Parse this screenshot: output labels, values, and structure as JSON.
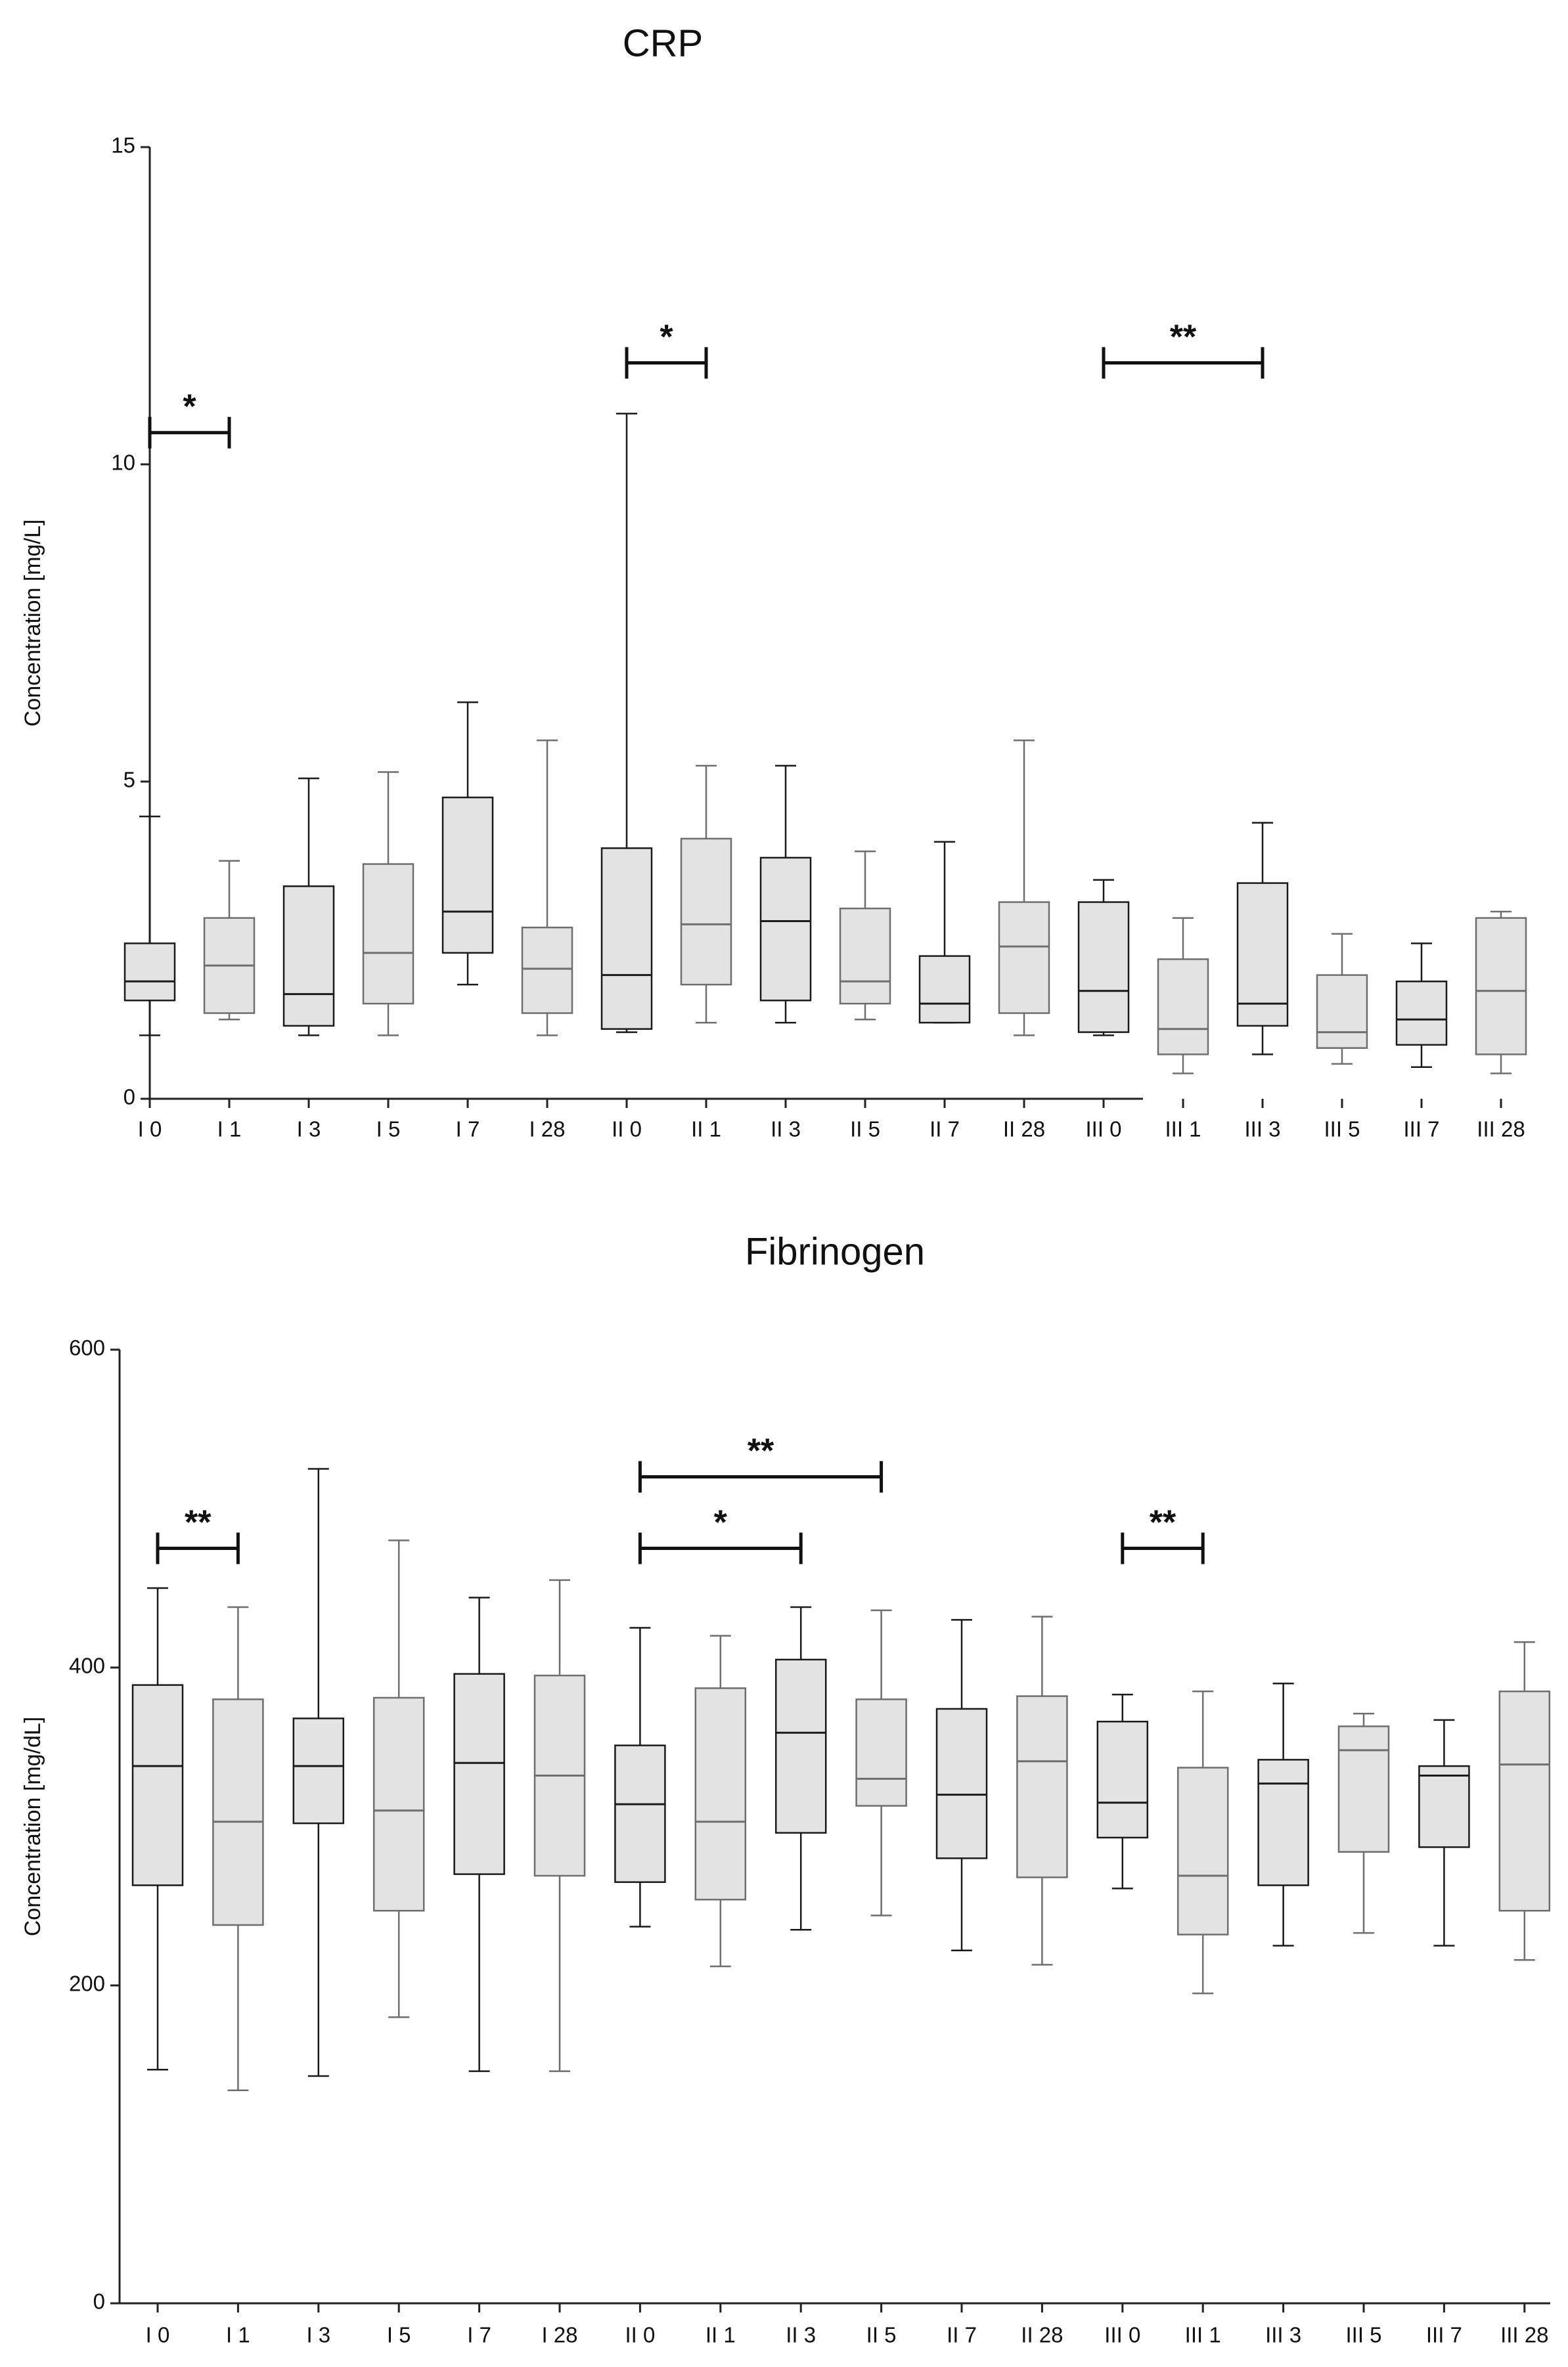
{
  "chart_data": [
    {
      "type": "box",
      "title": "CRP",
      "ylabel": "Concentration [mg/L]",
      "ylim": [
        0,
        15
      ],
      "yticks": [
        "0",
        "5",
        "10",
        "15"
      ],
      "categories": [
        "I 0",
        "I 1",
        "I 3",
        "I 5",
        "I 7",
        "I 28",
        "II 0",
        "II 1",
        "II 3",
        "II 5",
        "II 7",
        "II 28",
        "III 0",
        "III 1",
        "III 3",
        "III 5",
        "III 7",
        "III 28"
      ],
      "boxes": [
        {
          "min": 1.0,
          "q1": 1.55,
          "median": 1.85,
          "q3": 2.45,
          "max": 4.45
        },
        {
          "min": 1.25,
          "q1": 1.35,
          "median": 2.1,
          "q3": 2.85,
          "max": 3.75
        },
        {
          "min": 1.0,
          "q1": 1.15,
          "median": 1.65,
          "q3": 3.35,
          "max": 5.05
        },
        {
          "min": 1.0,
          "q1": 1.5,
          "median": 2.3,
          "q3": 3.7,
          "max": 5.15
        },
        {
          "min": 1.8,
          "q1": 2.3,
          "median": 2.95,
          "q3": 4.75,
          "max": 6.25
        },
        {
          "min": 1.0,
          "q1": 1.35,
          "median": 2.05,
          "q3": 2.7,
          "max": 5.65
        },
        {
          "min": 1.05,
          "q1": 1.1,
          "median": 1.95,
          "q3": 3.95,
          "max": 10.8
        },
        {
          "min": 1.2,
          "q1": 1.8,
          "median": 2.75,
          "q3": 4.1,
          "max": 5.25
        },
        {
          "min": 1.2,
          "q1": 1.55,
          "median": 2.8,
          "q3": 3.8,
          "max": 5.25
        },
        {
          "min": 1.25,
          "q1": 1.5,
          "median": 1.85,
          "q3": 3.0,
          "max": 3.9
        },
        {
          "min": 1.2,
          "q1": 1.2,
          "median": 1.5,
          "q3": 2.25,
          "max": 4.05
        },
        {
          "min": 1.0,
          "q1": 1.35,
          "median": 2.4,
          "q3": 3.1,
          "max": 5.65
        },
        {
          "min": 1.0,
          "q1": 1.05,
          "median": 1.7,
          "q3": 3.1,
          "max": 3.45
        },
        {
          "min": 0.4,
          "q1": 0.7,
          "median": 1.1,
          "q3": 2.2,
          "max": 2.85
        },
        {
          "min": 0.7,
          "q1": 1.15,
          "median": 1.5,
          "q3": 3.4,
          "max": 4.35
        },
        {
          "min": 0.55,
          "q1": 0.8,
          "median": 1.05,
          "q3": 1.95,
          "max": 2.6
        },
        {
          "min": 0.5,
          "q1": 0.85,
          "median": 1.25,
          "q3": 1.85,
          "max": 2.45
        },
        {
          "min": 0.4,
          "q1": 0.7,
          "median": 1.7,
          "q3": 2.85,
          "max": 2.95
        }
      ],
      "significance": [
        {
          "from": 0,
          "to": 1,
          "y": 10.5,
          "label": "*"
        },
        {
          "from": 6,
          "to": 7,
          "y": 11.6,
          "label": "*"
        },
        {
          "from": 12,
          "to": 14,
          "y": 11.6,
          "label": "**"
        }
      ]
    },
    {
      "type": "box",
      "title": "Fibrinogen",
      "ylabel": "Concentration [mg/dL]",
      "ylim": [
        0,
        600
      ],
      "yticks": [
        "0",
        "200",
        "400",
        "600"
      ],
      "categories": [
        "I 0",
        "I 1",
        "I 3",
        "I 5",
        "I 7",
        "I 28",
        "II 0",
        "II 1",
        "II 3",
        "II 5",
        "II 7",
        "II 28",
        "III 0",
        "III 1",
        "III 3",
        "III 5",
        "III 7",
        "III 28"
      ],
      "boxes": [
        {
          "min": 147,
          "q1": 263,
          "median": 338,
          "q3": 389,
          "max": 450
        },
        {
          "min": 134,
          "q1": 238,
          "median": 303,
          "q3": 380,
          "max": 438
        },
        {
          "min": 143,
          "q1": 302,
          "median": 338,
          "q3": 368,
          "max": 525
        },
        {
          "min": 180,
          "q1": 247,
          "median": 310,
          "q3": 381,
          "max": 480
        },
        {
          "min": 146,
          "q1": 270,
          "median": 340,
          "q3": 396,
          "max": 444
        },
        {
          "min": 146,
          "q1": 269,
          "median": 332,
          "q3": 395,
          "max": 455
        },
        {
          "min": 237,
          "q1": 265,
          "median": 314,
          "q3": 351,
          "max": 425
        },
        {
          "min": 212,
          "q1": 254,
          "median": 303,
          "q3": 387,
          "max": 420
        },
        {
          "min": 235,
          "q1": 296,
          "median": 359,
          "q3": 405,
          "max": 438
        },
        {
          "min": 244,
          "q1": 313,
          "median": 330,
          "q3": 380,
          "max": 436
        },
        {
          "min": 222,
          "q1": 280,
          "median": 320,
          "q3": 374,
          "max": 430
        },
        {
          "min": 213,
          "q1": 268,
          "median": 341,
          "q3": 382,
          "max": 432
        },
        {
          "min": 261,
          "q1": 293,
          "median": 315,
          "q3": 366,
          "max": 383
        },
        {
          "min": 195,
          "q1": 232,
          "median": 269,
          "q3": 337,
          "max": 385
        },
        {
          "min": 225,
          "q1": 263,
          "median": 327,
          "q3": 342,
          "max": 390
        },
        {
          "min": 233,
          "q1": 284,
          "median": 348,
          "q3": 363,
          "max": 371
        },
        {
          "min": 225,
          "q1": 287,
          "median": 332,
          "q3": 338,
          "max": 367
        },
        {
          "min": 216,
          "q1": 247,
          "median": 339,
          "q3": 385,
          "max": 416
        }
      ],
      "significance": [
        {
          "from": 0,
          "to": 1,
          "y": 475,
          "label": "**"
        },
        {
          "from": 6,
          "to": 9,
          "y": 520,
          "label": "**"
        },
        {
          "from": 6,
          "to": 8,
          "y": 475,
          "label": "*"
        },
        {
          "from": 12,
          "to": 13,
          "y": 475,
          "label": "**"
        }
      ]
    }
  ]
}
